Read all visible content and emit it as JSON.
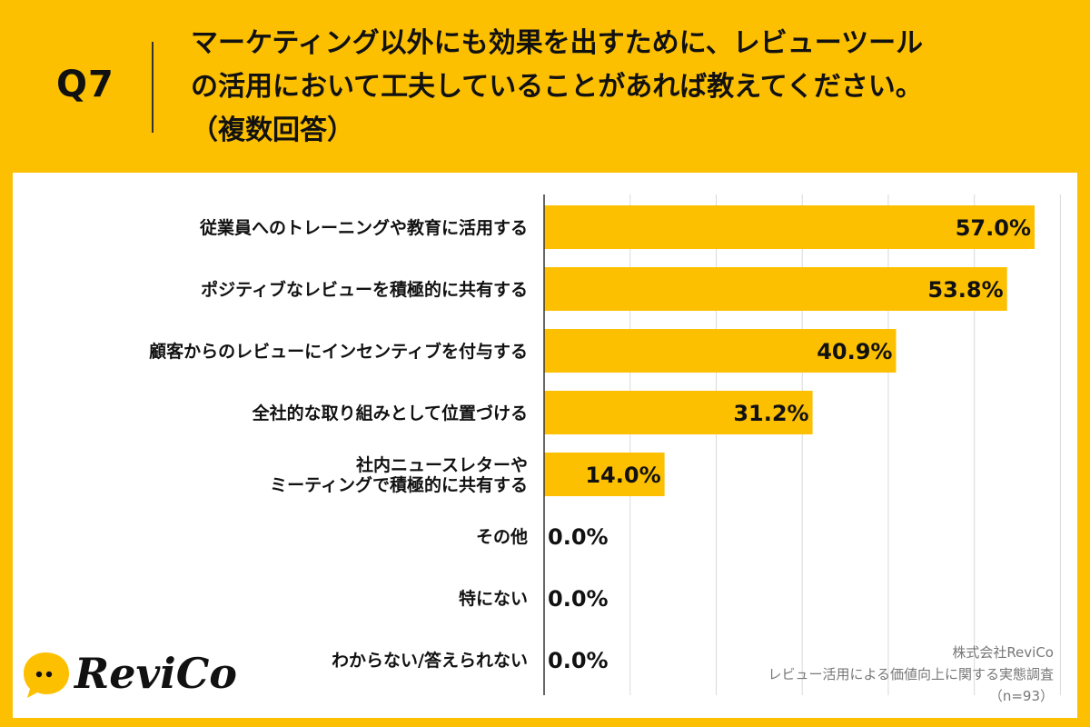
{
  "header": {
    "question_number": "Q7",
    "question_lines": [
      "マーケティング以外にも効果を出すために、レビューツール",
      "の活用において工夫していることがあれば教えてください。",
      "（複数回答）"
    ]
  },
  "chart_data": {
    "type": "bar",
    "orientation": "horizontal",
    "categories": [
      "従業員へのトレーニングや教育に活用する",
      "ポジティブなレビューを積極的に共有する",
      "顧客からのレビューにインセンティブを付与する",
      "全社的な取り組みとして位置づける",
      "社内ニュースレターや\nミーティングで積極的に共有する",
      "その他",
      "特にない",
      "わからない/答えられない"
    ],
    "values": [
      57.0,
      53.8,
      40.9,
      31.2,
      14.0,
      0.0,
      0.0,
      0.0
    ],
    "value_labels": [
      "57.0%",
      "53.8%",
      "40.9%",
      "31.2%",
      "14.0%",
      "0.0%",
      "0.0%",
      "0.0%"
    ],
    "xlim": [
      0,
      60
    ],
    "grid": true,
    "bar_color": "#FDC001",
    "title": "",
    "xlabel": "",
    "ylabel": ""
  },
  "footer": {
    "logo_text": "ReviCo",
    "company": "株式会社ReviCo",
    "survey": "レビュー活用による価値向上に関する実態調査",
    "sample": "（n=93）"
  },
  "colors": {
    "background": "#FDC001",
    "panel": "#FFFFFF",
    "text": "#111111",
    "muted": "#777777"
  }
}
